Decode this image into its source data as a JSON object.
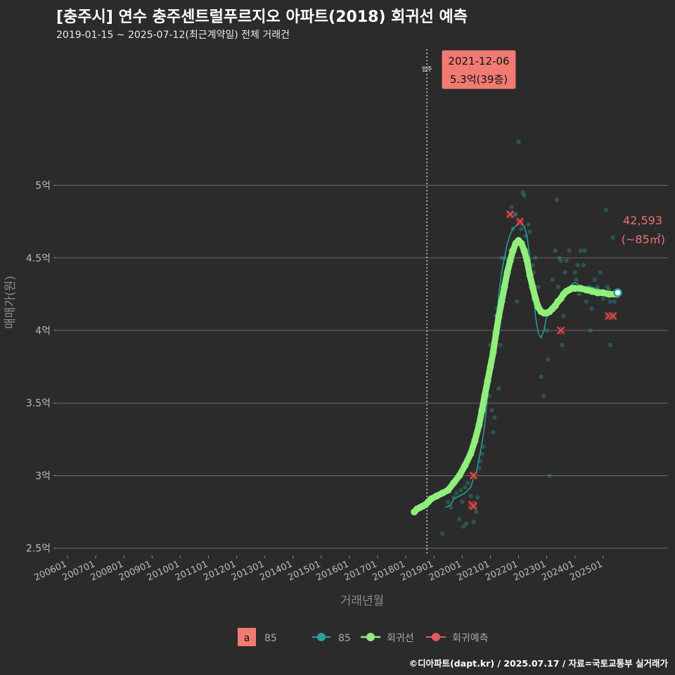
{
  "header": {
    "title": "[충주시] 연수 충주센트럴푸르지오 아파트(2018) 회귀선 예측",
    "subtitle": "2019-01-15 ~ 2025-07-12(최근계약일) 전체 거래건"
  },
  "caption": "©디아파트(dapt.kr) / 2025.07.17 / 자료=국토교통부 실거래가",
  "colors": {
    "background": "#2b2b2c",
    "grid": "#6a6a6a",
    "series_85": "#2aa198",
    "regression": "#90ee7a",
    "forecast": "#e05a5a",
    "callout_bg": "#f17b73",
    "accent_text": "#f07070"
  },
  "chart_data": {
    "type": "scatter",
    "xlabel": "거래년월",
    "ylabel": "매매가(원)",
    "xlim": [
      2005.6,
      2027.3
    ],
    "ylim": [
      2.45,
      5.55
    ],
    "y_ticks": [
      {
        "v": 2.5,
        "label": "2.5억"
      },
      {
        "v": 3.0,
        "label": "3억"
      },
      {
        "v": 3.5,
        "label": "3.5억"
      },
      {
        "v": 4.0,
        "label": "4억"
      },
      {
        "v": 4.5,
        "label": "4.5억"
      },
      {
        "v": 5.0,
        "label": "5억"
      }
    ],
    "x_ticks": [
      {
        "v": 2006.0,
        "label": "200601"
      },
      {
        "v": 2007.0,
        "label": "200701"
      },
      {
        "v": 2008.0,
        "label": "200801"
      },
      {
        "v": 2009.0,
        "label": "200901"
      },
      {
        "v": 2010.0,
        "label": "201001"
      },
      {
        "v": 2011.0,
        "label": "201101"
      },
      {
        "v": 2012.0,
        "label": "201201"
      },
      {
        "v": 2013.0,
        "label": "201301"
      },
      {
        "v": 2014.0,
        "label": "201401"
      },
      {
        "v": 2015.0,
        "label": "201501"
      },
      {
        "v": 2016.0,
        "label": "201601"
      },
      {
        "v": 2017.0,
        "label": "201701"
      },
      {
        "v": 2018.0,
        "label": "201801"
      },
      {
        "v": 2019.0,
        "label": "201901"
      },
      {
        "v": 2020.0,
        "label": "202001"
      },
      {
        "v": 2021.0,
        "label": "202101"
      },
      {
        "v": 2022.0,
        "label": "202201"
      },
      {
        "v": 2023.0,
        "label": "202301"
      },
      {
        "v": 2024.0,
        "label": "202401"
      },
      {
        "v": 2025.0,
        "label": "202501"
      }
    ],
    "move_in": {
      "x": 2018.75,
      "label": "입주"
    },
    "scatter_points": [
      [
        2019.3,
        2.6
      ],
      [
        2019.5,
        2.82
      ],
      [
        2019.6,
        2.78
      ],
      [
        2019.7,
        2.85
      ],
      [
        2019.8,
        2.88
      ],
      [
        2019.9,
        2.7
      ],
      [
        2019.95,
        2.9
      ],
      [
        2020.0,
        2.82
      ],
      [
        2020.05,
        2.65
      ],
      [
        2020.1,
        2.92
      ],
      [
        2020.15,
        2.67
      ],
      [
        2020.2,
        2.95
      ],
      [
        2020.3,
        2.86
      ],
      [
        2020.35,
        2.78
      ],
      [
        2020.4,
        2.68
      ],
      [
        2020.45,
        3.0
      ],
      [
        2020.5,
        2.75
      ],
      [
        2020.55,
        2.85
      ],
      [
        2020.6,
        3.05
      ],
      [
        2020.65,
        3.1
      ],
      [
        2020.7,
        3.15
      ],
      [
        2020.75,
        3.2
      ],
      [
        2020.8,
        3.45
      ],
      [
        2020.85,
        3.5
      ],
      [
        2020.9,
        3.6
      ],
      [
        2020.95,
        3.55
      ],
      [
        2021.0,
        3.9
      ],
      [
        2021.05,
        3.45
      ],
      [
        2021.1,
        3.3
      ],
      [
        2021.15,
        3.4
      ],
      [
        2021.2,
        4.1
      ],
      [
        2021.25,
        4.15
      ],
      [
        2021.3,
        3.6
      ],
      [
        2021.35,
        3.9
      ],
      [
        2021.4,
        4.5
      ],
      [
        2021.5,
        4.5
      ],
      [
        2021.6,
        4.4
      ],
      [
        2021.7,
        4.55
      ],
      [
        2021.75,
        4.85
      ],
      [
        2021.8,
        4.7
      ],
      [
        2021.85,
        4.8
      ],
      [
        2021.9,
        4.8
      ],
      [
        2021.95,
        4.2
      ],
      [
        2022.0,
        5.3
      ],
      [
        2022.05,
        4.6
      ],
      [
        2022.1,
        4.7
      ],
      [
        2022.15,
        4.95
      ],
      [
        2022.2,
        4.93
      ],
      [
        2022.25,
        4.65
      ],
      [
        2022.3,
        4.55
      ],
      [
        2022.35,
        4.73
      ],
      [
        2022.4,
        4.68
      ],
      [
        2022.5,
        4.45
      ],
      [
        2022.55,
        4.4
      ],
      [
        2022.6,
        4.5
      ],
      [
        2022.7,
        4.3
      ],
      [
        2022.8,
        3.68
      ],
      [
        2022.9,
        3.55
      ],
      [
        2023.0,
        4.0
      ],
      [
        2023.05,
        3.8
      ],
      [
        2023.1,
        3.0
      ],
      [
        2023.2,
        4.35
      ],
      [
        2023.3,
        4.55
      ],
      [
        2023.35,
        4.9
      ],
      [
        2023.4,
        4.3
      ],
      [
        2023.45,
        4.5
      ],
      [
        2023.5,
        4.48
      ],
      [
        2023.55,
        3.9
      ],
      [
        2023.6,
        4.1
      ],
      [
        2023.65,
        4.4
      ],
      [
        2023.7,
        4.48
      ],
      [
        2023.8,
        4.55
      ],
      [
        2023.9,
        4.3
      ],
      [
        2024.0,
        4.4
      ],
      [
        2024.05,
        4.35
      ],
      [
        2024.1,
        4.45
      ],
      [
        2024.15,
        4.25
      ],
      [
        2024.2,
        4.55
      ],
      [
        2024.3,
        4.45
      ],
      [
        2024.35,
        4.55
      ],
      [
        2024.4,
        4.2
      ],
      [
        2024.5,
        4.3
      ],
      [
        2024.55,
        4.0
      ],
      [
        2024.6,
        4.15
      ],
      [
        2024.7,
        4.35
      ],
      [
        2024.8,
        4.3
      ],
      [
        2024.85,
        4.25
      ],
      [
        2024.9,
        4.4
      ],
      [
        2025.0,
        4.22
      ],
      [
        2025.1,
        4.83
      ],
      [
        2025.15,
        4.3
      ],
      [
        2025.2,
        4.28
      ],
      [
        2025.25,
        4.2
      ],
      [
        2025.3,
        4.1
      ],
      [
        2025.35,
        4.64
      ],
      [
        2025.4,
        4.2
      ],
      [
        2025.25,
        3.9
      ]
    ],
    "series": [
      {
        "name": "85",
        "values": [
          [
            2019.4,
            2.78
          ],
          [
            2019.6,
            2.8
          ],
          [
            2019.7,
            2.84
          ],
          [
            2019.8,
            2.85
          ],
          [
            2020.0,
            2.87
          ],
          [
            2020.1,
            2.88
          ],
          [
            2020.3,
            2.92
          ],
          [
            2020.4,
            2.98
          ],
          [
            2020.5,
            3.02
          ],
          [
            2020.6,
            3.12
          ],
          [
            2020.7,
            3.22
          ],
          [
            2020.8,
            3.35
          ],
          [
            2020.9,
            3.55
          ],
          [
            2021.0,
            3.7
          ],
          [
            2021.1,
            3.9
          ],
          [
            2021.2,
            4.05
          ],
          [
            2021.3,
            4.25
          ],
          [
            2021.4,
            4.4
          ],
          [
            2021.5,
            4.5
          ],
          [
            2021.6,
            4.6
          ],
          [
            2021.7,
            4.66
          ],
          [
            2021.8,
            4.7
          ],
          [
            2021.9,
            4.72
          ],
          [
            2022.0,
            4.73
          ],
          [
            2022.1,
            4.73
          ],
          [
            2022.2,
            4.72
          ],
          [
            2022.3,
            4.65
          ],
          [
            2022.4,
            4.5
          ],
          [
            2022.5,
            4.3
          ],
          [
            2022.6,
            4.1
          ],
          [
            2022.7,
            3.98
          ],
          [
            2022.8,
            3.95
          ],
          [
            2022.9,
            4.0
          ],
          [
            2023.0,
            4.1
          ],
          [
            2023.1,
            4.15
          ],
          [
            2023.2,
            4.18
          ],
          [
            2023.3,
            4.2
          ],
          [
            2023.4,
            4.22
          ],
          [
            2023.5,
            4.26
          ],
          [
            2023.6,
            4.28
          ],
          [
            2023.7,
            4.28
          ],
          [
            2023.8,
            4.3
          ],
          [
            2023.9,
            4.32
          ],
          [
            2024.0,
            4.33
          ],
          [
            2024.1,
            4.32
          ],
          [
            2024.2,
            4.3
          ],
          [
            2024.3,
            4.3
          ],
          [
            2024.4,
            4.3
          ],
          [
            2024.5,
            4.3
          ],
          [
            2024.6,
            4.3
          ],
          [
            2024.7,
            4.29
          ],
          [
            2024.8,
            4.29
          ],
          [
            2024.9,
            4.28
          ],
          [
            2025.0,
            4.28
          ],
          [
            2025.1,
            4.27
          ],
          [
            2025.2,
            4.27
          ],
          [
            2025.3,
            4.265
          ],
          [
            2025.52,
            4.26
          ]
        ]
      },
      {
        "name": "회귀선",
        "values": [
          [
            2018.3,
            2.75
          ],
          [
            2018.4,
            2.77
          ],
          [
            2018.5,
            2.78
          ],
          [
            2018.6,
            2.79
          ],
          [
            2018.7,
            2.8
          ],
          [
            2018.8,
            2.82
          ],
          [
            2018.9,
            2.84
          ],
          [
            2019.1,
            2.86
          ],
          [
            2019.3,
            2.88
          ],
          [
            2019.5,
            2.9
          ],
          [
            2019.7,
            2.95
          ],
          [
            2019.9,
            3.0
          ],
          [
            2020.1,
            3.07
          ],
          [
            2020.3,
            3.15
          ],
          [
            2020.45,
            3.24
          ],
          [
            2020.6,
            3.35
          ],
          [
            2020.7,
            3.45
          ],
          [
            2020.8,
            3.55
          ],
          [
            2020.9,
            3.65
          ],
          [
            2021.0,
            3.75
          ],
          [
            2021.1,
            3.85
          ],
          [
            2021.2,
            3.98
          ],
          [
            2021.3,
            4.1
          ],
          [
            2021.4,
            4.2
          ],
          [
            2021.5,
            4.3
          ],
          [
            2021.6,
            4.4
          ],
          [
            2021.7,
            4.48
          ],
          [
            2021.8,
            4.55
          ],
          [
            2021.9,
            4.6
          ],
          [
            2022.0,
            4.62
          ],
          [
            2022.1,
            4.6
          ],
          [
            2022.2,
            4.55
          ],
          [
            2022.3,
            4.48
          ],
          [
            2022.4,
            4.38
          ],
          [
            2022.5,
            4.3
          ],
          [
            2022.6,
            4.22
          ],
          [
            2022.7,
            4.16
          ],
          [
            2022.8,
            4.13
          ],
          [
            2022.9,
            4.12
          ],
          [
            2023.0,
            4.12
          ],
          [
            2023.1,
            4.13
          ],
          [
            2023.2,
            4.15
          ],
          [
            2023.3,
            4.17
          ],
          [
            2023.4,
            4.2
          ],
          [
            2023.5,
            4.22
          ],
          [
            2023.6,
            4.25
          ],
          [
            2023.7,
            4.27
          ],
          [
            2023.8,
            4.28
          ],
          [
            2023.9,
            4.29
          ],
          [
            2024.0,
            4.29
          ],
          [
            2024.2,
            4.29
          ],
          [
            2024.4,
            4.28
          ],
          [
            2024.6,
            4.27
          ],
          [
            2024.8,
            4.26
          ],
          [
            2025.0,
            4.26
          ],
          [
            2025.2,
            4.25
          ],
          [
            2025.5,
            4.25
          ]
        ]
      },
      {
        "name": "회귀예측",
        "values": [
          [
            2020.4,
            3.0
          ],
          [
            2020.35,
            2.8
          ],
          [
            2020.4,
            2.79
          ],
          [
            2021.7,
            4.8
          ],
          [
            2022.05,
            4.75
          ],
          [
            2023.5,
            4.0
          ],
          [
            2025.2,
            4.1
          ],
          [
            2025.35,
            4.1
          ]
        ]
      }
    ],
    "callout": {
      "x": 2021.93,
      "y": 5.3,
      "date": "2021-12-06",
      "price": "5.3억(39층)"
    },
    "last_point": {
      "x": 2025.52,
      "y": 4.26,
      "value": "42,593",
      "area": "(~85㎡)"
    },
    "legend": {
      "box_letter": "a",
      "box_label": "85",
      "items": [
        "85",
        "회귀선",
        "회귀예측"
      ]
    }
  }
}
